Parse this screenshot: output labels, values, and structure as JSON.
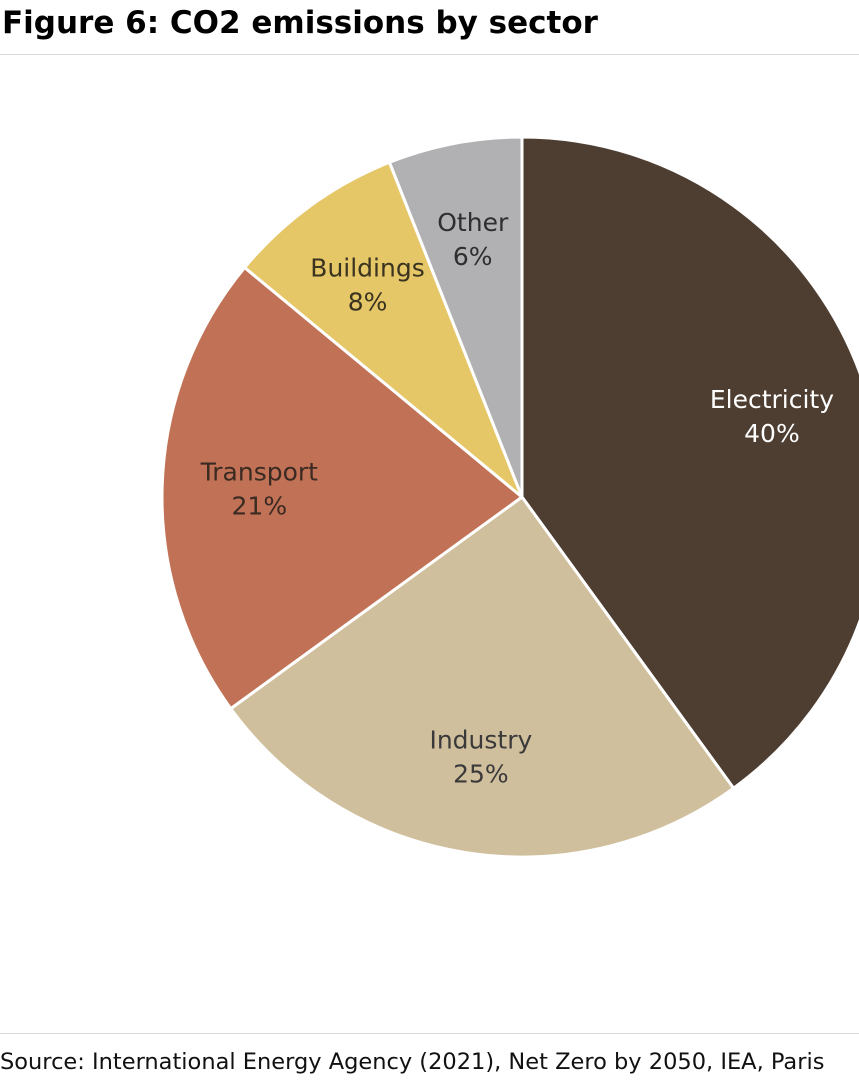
{
  "title": "Figure 6: CO2 emissions by sector",
  "source": "Source: International Energy Agency (2021), Net Zero by 2050, IEA, Paris",
  "chart_data": {
    "type": "pie",
    "title": "Figure 6: CO2 emissions by sector",
    "start_angle_deg": 0,
    "direction": "clockwise",
    "slices": [
      {
        "label": "Electricity",
        "value": 40,
        "value_label": "40%",
        "color": "#4e3d31",
        "text_color": "#ffffff"
      },
      {
        "label": "Industry",
        "value": 25,
        "value_label": "25%",
        "color": "#d0bf9c",
        "text_color": "#3a3a3a"
      },
      {
        "label": "Transport",
        "value": 21,
        "value_label": "21%",
        "color": "#c17256",
        "text_color": "#3a2a22"
      },
      {
        "label": "Buildings",
        "value": 8,
        "value_label": "8%",
        "color": "#e6c767",
        "text_color": "#3a3320"
      },
      {
        "label": "Other",
        "value": 6,
        "value_label": "6%",
        "color": "#b1b1b4",
        "text_color": "#2e2e2e"
      }
    ],
    "legend": "none",
    "labels": "inside"
  }
}
